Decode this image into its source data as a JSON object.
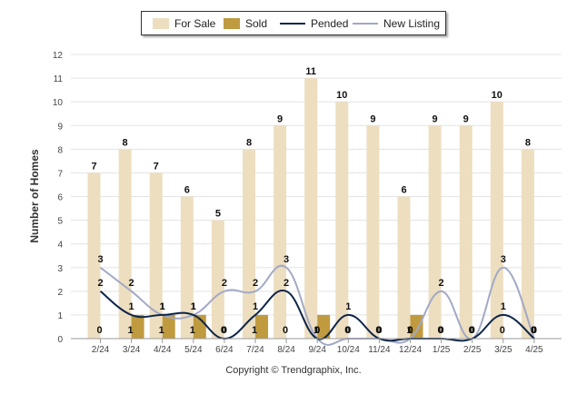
{
  "chart_data": {
    "type": "bar",
    "ylabel": "Number of Homes",
    "ylim": [
      0,
      12
    ],
    "yticks": [
      0,
      1,
      2,
      3,
      4,
      5,
      6,
      7,
      8,
      9,
      10,
      11,
      12
    ],
    "grid": true,
    "legend_position": "top-center",
    "categories": [
      "2/24",
      "3/24",
      "4/24",
      "5/24",
      "6/24",
      "7/24",
      "8/24",
      "9/24",
      "10/24",
      "11/24",
      "12/24",
      "1/25",
      "2/25",
      "3/25",
      "4/25"
    ],
    "series": [
      {
        "name": "For Sale",
        "kind": "bar",
        "color": "#EDDEC0",
        "values": [
          7,
          8,
          7,
          6,
          5,
          8,
          9,
          11,
          10,
          9,
          6,
          9,
          9,
          10,
          8
        ]
      },
      {
        "name": "Sold",
        "kind": "bar",
        "color": "#BF9A3F",
        "values": [
          0,
          1,
          1,
          1,
          0,
          1,
          0,
          1,
          0,
          0,
          1,
          0,
          0,
          0,
          0
        ]
      },
      {
        "name": "Pended",
        "kind": "line",
        "color": "#0D2548",
        "values": [
          2,
          1,
          1,
          1,
          0,
          1,
          2,
          0,
          1,
          0,
          0,
          0,
          0,
          1,
          0
        ]
      },
      {
        "name": "New Listing",
        "kind": "line",
        "color": "#A2A9C4",
        "values": [
          3,
          2,
          1,
          1,
          2,
          2,
          3,
          0,
          0,
          0,
          0,
          2,
          0,
          3,
          0
        ]
      }
    ]
  },
  "footer": {
    "copyright": "Copyright © Trendgraphix, Inc."
  }
}
